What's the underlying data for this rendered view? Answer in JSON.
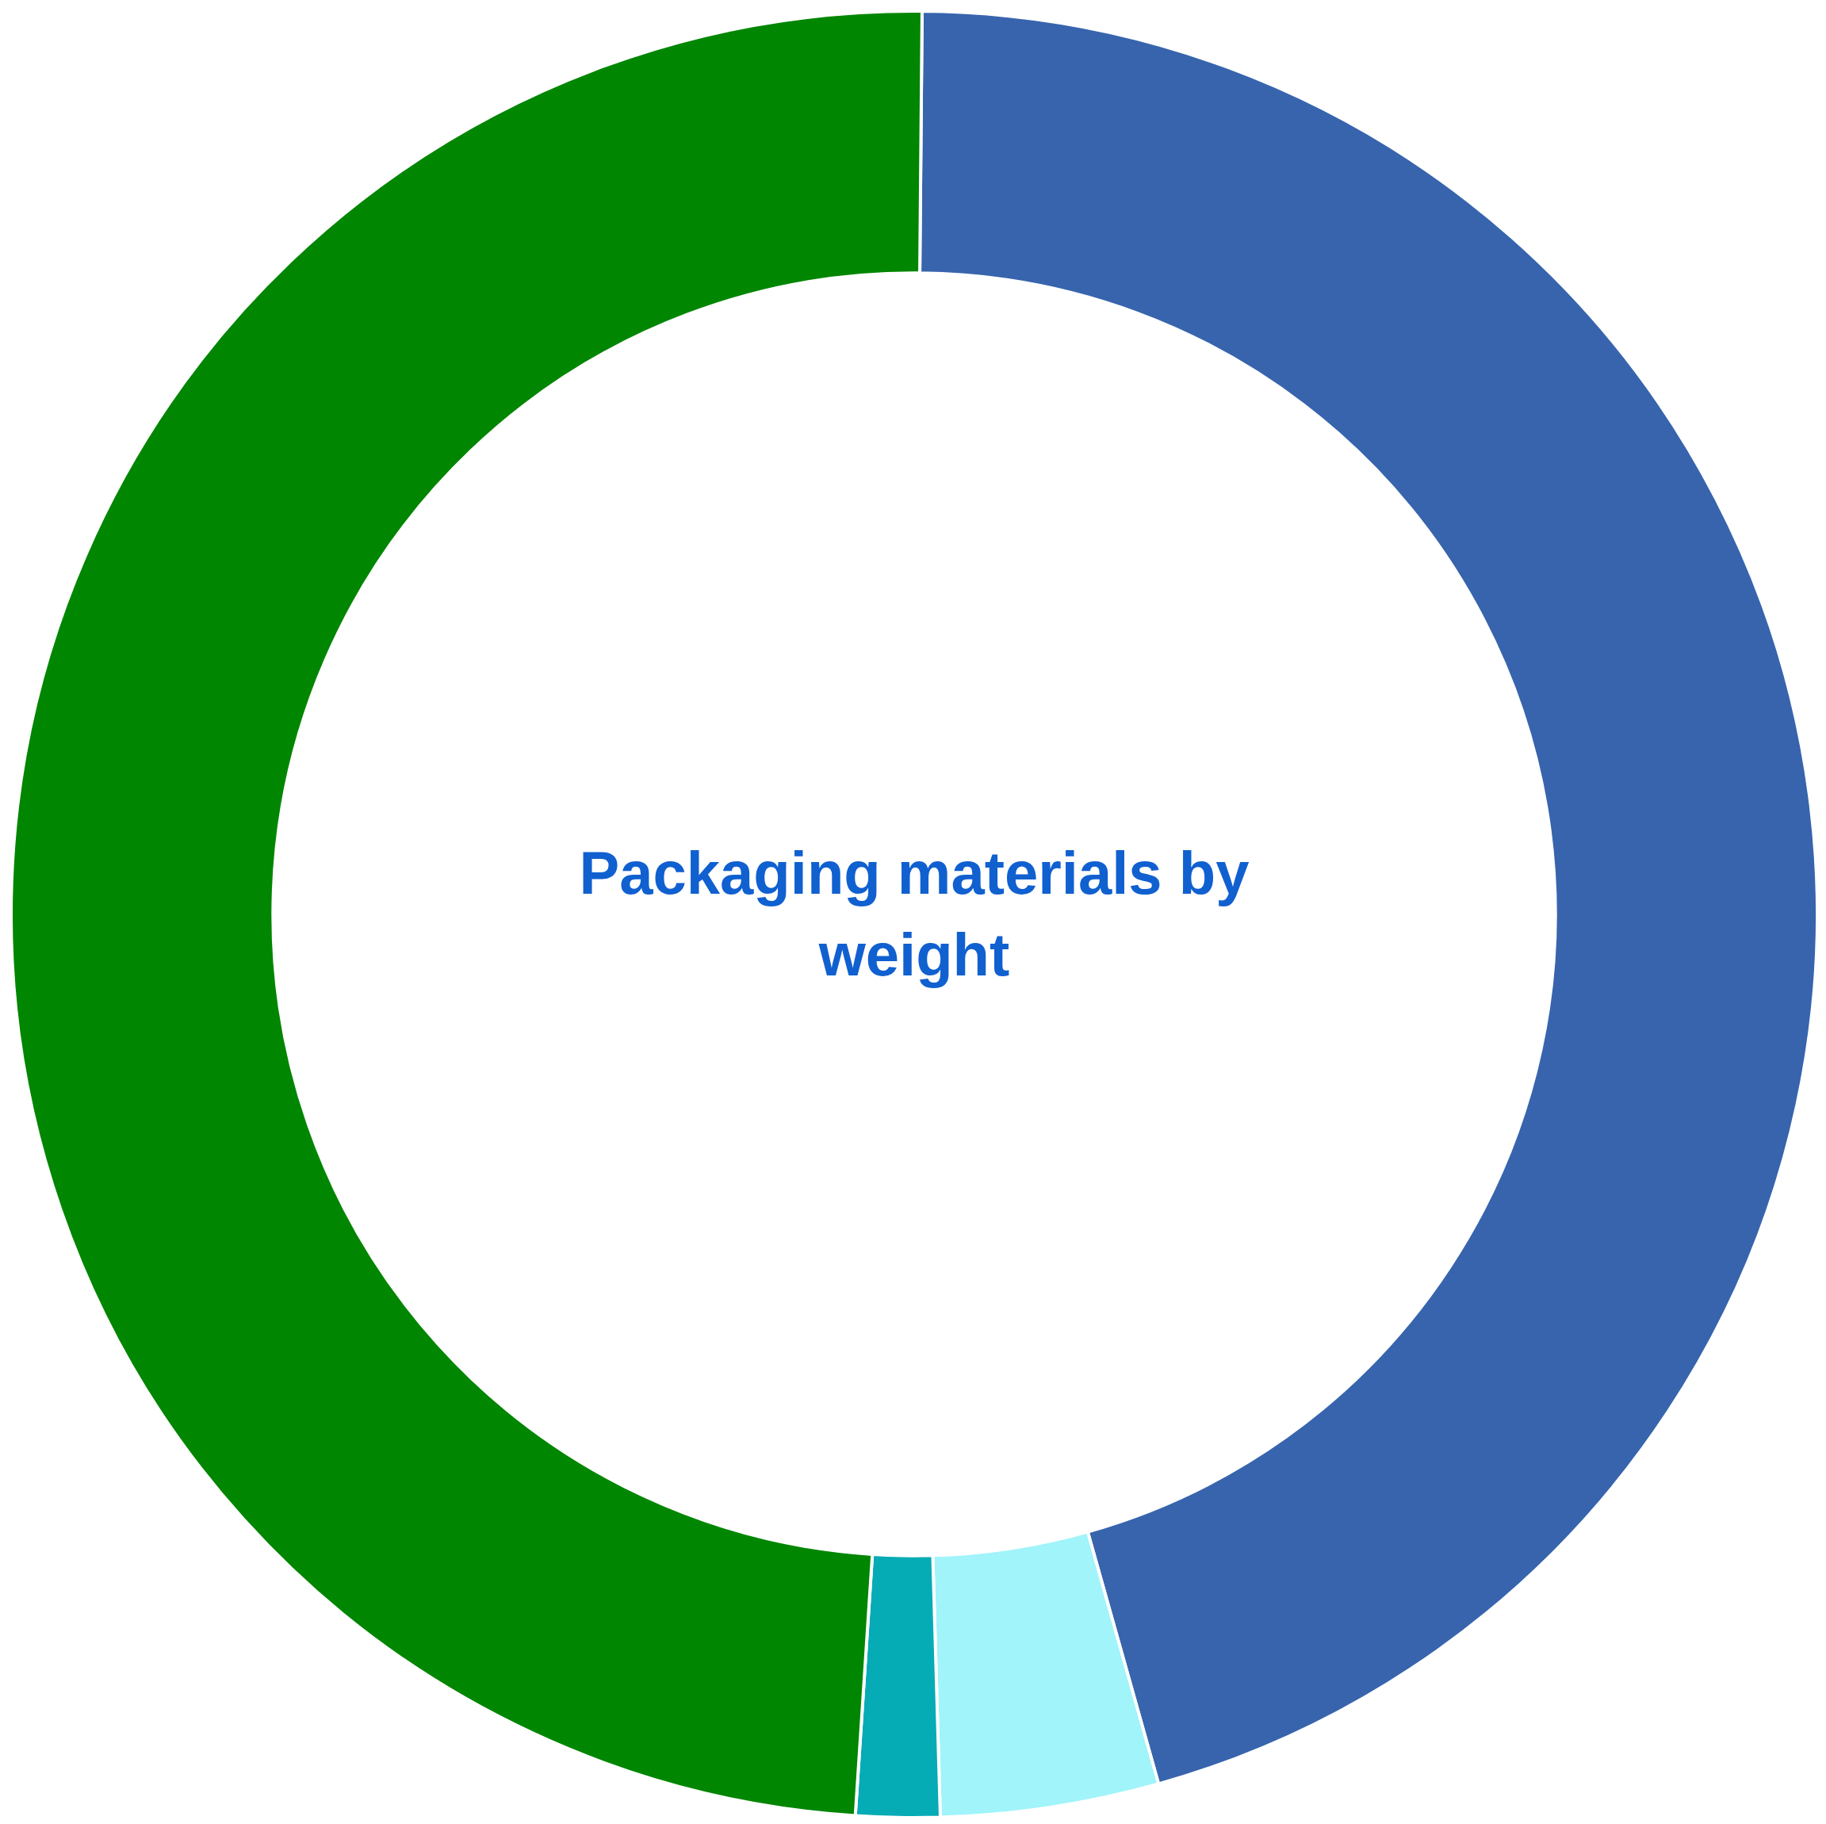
{
  "chart_data": {
    "type": "donut",
    "title": "Packaging materials by weight",
    "categories": [
      null,
      null,
      null,
      null
    ],
    "values": [
      45.5,
      3.9,
      1.5,
      49.1
    ],
    "colors": [
      "#3764ad",
      "#a0f4fa",
      "#05abb5",
      "#008600"
    ],
    "legend": false
  }
}
